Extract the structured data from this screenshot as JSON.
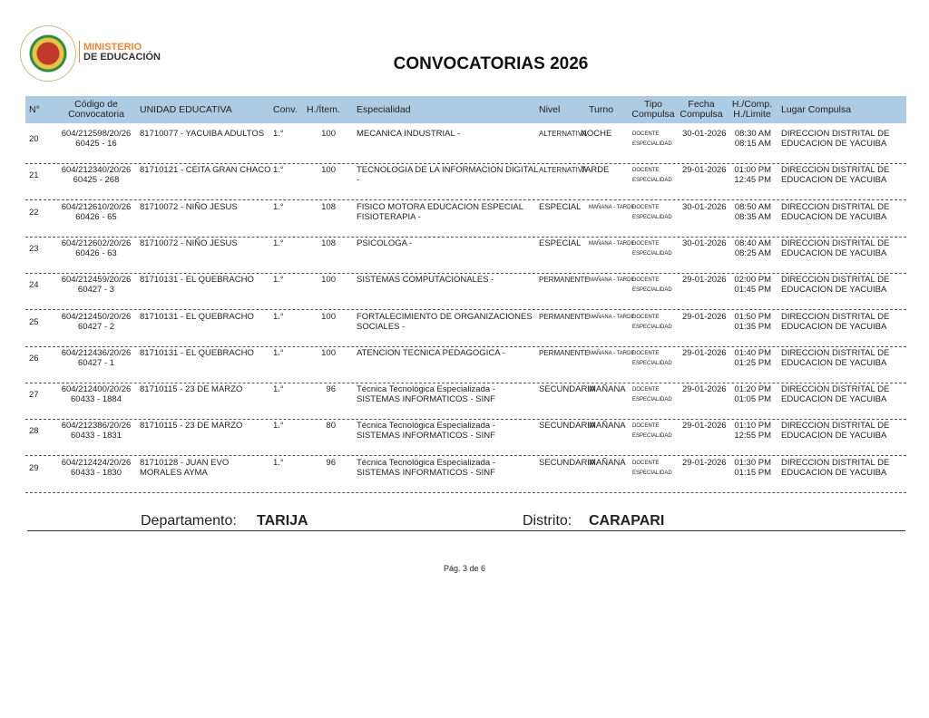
{
  "header": {
    "ministry_line1": "MINISTERIO",
    "ministry_line2": "DE EDUCACIÓN",
    "title": "CONVOCATORIAS 2026"
  },
  "columns": {
    "n": "N°",
    "codigo": "Código de Convocatoria",
    "unidad": "UNIDAD EDUCATIVA",
    "conv": "Conv.",
    "hitem": "H./Ítem.",
    "esp": "Especialidad",
    "nivel": "Nivel",
    "turno": "Turno",
    "tipo": "Tipo Compulsa",
    "fecha": "Fecha Compulsa",
    "hora": "H./Comp. H./Limite",
    "lugar": "Lugar Compulsa"
  },
  "rows": [
    {
      "n": "20",
      "cod1": "604/212598/20/26",
      "cod2": "60425 - 16",
      "unidad": "81710077 - YACUIBA ADULTOS",
      "unidad2": "",
      "conv": "1.°",
      "hitem": "100",
      "esp1": "MECANICA INDUSTRIAL -",
      "esp2": "",
      "nivel": "ALTERNATIVA",
      "turno": "NOCHE",
      "tipo1": "DOCENTE",
      "tipo2": "ESPECIALIDAD",
      "fecha": "30-01-2026",
      "h1": "08:30 AM",
      "h2": "08:15 AM",
      "lugar1": "DIRECCION DISTRITAL DE",
      "lugar2": "EDUCACION DE YACUIBA"
    },
    {
      "n": "21",
      "cod1": "604/212340/20/26",
      "cod2": "60425 - 268",
      "unidad": "81710121 - CEITA GRAN CHACO",
      "unidad2": "",
      "conv": "1.°",
      "hitem": "100",
      "esp1": "TECNOLOGIA DE LA INFORMACION DIGITAL",
      "esp2": "-",
      "nivel": "ALTERNATIVA",
      "turno": "TARDE",
      "tipo1": "DOCENTE",
      "tipo2": "ESPECIALIDAD",
      "fecha": "29-01-2026",
      "h1": "01:00 PM",
      "h2": "12:45 PM",
      "lugar1": "DIRECCION DISTRITAL DE",
      "lugar2": "EDUCACION DE YACUIBA"
    },
    {
      "n": "22",
      "cod1": "604/212610/20/26",
      "cod2": "60426 - 65",
      "unidad": "81710072 - NIÑO JESUS",
      "unidad2": "",
      "conv": "1.°",
      "hitem": "108",
      "esp1": "FISICO MOTORA EDUCACION ESPECIAL",
      "esp2": "FISIOTERAPIA -",
      "nivel": "ESPECIAL",
      "turno": "MAÑANA - TARDE",
      "tipo1": "DOCENTE",
      "tipo2": "ESPECIALIDAD",
      "fecha": "30-01-2026",
      "h1": "08:50 AM",
      "h2": "08:35 AM",
      "lugar1": "DIRECCION DISTRITAL DE",
      "lugar2": "EDUCACION DE YACUIBA"
    },
    {
      "n": "23",
      "cod1": "604/212602/20/26",
      "cod2": "60426 - 63",
      "unidad": "81710072 - NIÑO JESUS",
      "unidad2": "",
      "conv": "1.°",
      "hitem": "108",
      "esp1": "PSICOLOGA -",
      "esp2": "",
      "nivel": "ESPECIAL",
      "turno": "MAÑANA - TARDE",
      "tipo1": "DOCENTE",
      "tipo2": "ESPECIALIDAD",
      "fecha": "30-01-2026",
      "h1": "08:40 AM",
      "h2": "08:25 AM",
      "lugar1": "DIRECCION DISTRITAL DE",
      "lugar2": "EDUCACION DE YACUIBA"
    },
    {
      "n": "24",
      "cod1": "604/212459/20/26",
      "cod2": "60427 - 3",
      "unidad": "81710131 - EL QUEBRACHO",
      "unidad2": "",
      "conv": "1.°",
      "hitem": "100",
      "esp1": "SISTEMAS COMPUTACIONALES -",
      "esp2": "",
      "nivel": "PERMANENTE",
      "turno": "MAÑANA - TARDE",
      "tipo1": "DOCENTE",
      "tipo2": "ESPECIALIDAD",
      "fecha": "29-01-2026",
      "h1": "02:00 PM",
      "h2": "01:45 PM",
      "lugar1": "DIRECCION DISTRITAL DE",
      "lugar2": "EDUCACION DE YACUIBA"
    },
    {
      "n": "25",
      "cod1": "604/212450/20/26",
      "cod2": "60427 - 2",
      "unidad": "81710131 - EL QUEBRACHO",
      "unidad2": "",
      "conv": "1.°",
      "hitem": "100",
      "esp1": "FORTALECIMIENTO DE ORGANIZACIONES",
      "esp2": "SOCIALES -",
      "nivel": "PERMANENTE",
      "turno": "MAÑANA - TARDE",
      "tipo1": "DOCENTE",
      "tipo2": "ESPECIALIDAD",
      "fecha": "29-01-2026",
      "h1": "01:50 PM",
      "h2": "01:35 PM",
      "lugar1": "DIRECCION DISTRITAL DE",
      "lugar2": "EDUCACION DE YACUIBA"
    },
    {
      "n": "26",
      "cod1": "604/212436/20/26",
      "cod2": "60427 - 1",
      "unidad": "81710131 - EL QUEBRACHO",
      "unidad2": "",
      "conv": "1.°",
      "hitem": "100",
      "esp1": "ATENCION TECNICA PEDAGOGICA -",
      "esp2": "",
      "nivel": "PERMANENTE",
      "turno": "MAÑANA - TARDE",
      "tipo1": "DOCENTE",
      "tipo2": "ESPECIALIDAD",
      "fecha": "29-01-2026",
      "h1": "01:40 PM",
      "h2": "01:25 PM",
      "lugar1": "DIRECCION DISTRITAL DE",
      "lugar2": "EDUCACION DE YACUIBA"
    },
    {
      "n": "27",
      "cod1": "604/212400/20/26",
      "cod2": "60433 - 1884",
      "unidad": "81710115 - 23 DE MARZO",
      "unidad2": "",
      "conv": "1.°",
      "hitem": "96",
      "esp1": "Técnica Tecnológica Especializada -",
      "esp2": "SISTEMAS INFORMATICOS  - SINF",
      "nivel": "SECUNDARIA",
      "turno": "MAÑANA",
      "tipo1": "DOCENTE",
      "tipo2": "ESPECIALIDAD",
      "fecha": "29-01-2026",
      "h1": "01:20 PM",
      "h2": "01:05 PM",
      "lugar1": "DIRECCION DISTRITAL DE",
      "lugar2": "EDUCACION DE YACUIBA"
    },
    {
      "n": "28",
      "cod1": "604/212386/20/26",
      "cod2": "60433 - 1831",
      "unidad": "81710115 - 23 DE MARZO",
      "unidad2": "",
      "conv": "1.°",
      "hitem": "80",
      "esp1": "Técnica Tecnológica Especializada -",
      "esp2": "SISTEMAS INFORMATICOS  - SINF",
      "nivel": "SECUNDARIA",
      "turno": "MAÑANA",
      "tipo1": "DOCENTE",
      "tipo2": "ESPECIALIDAD",
      "fecha": "29-01-2026",
      "h1": "01:10 PM",
      "h2": "12:55 PM",
      "lugar1": "DIRECCION DISTRITAL DE",
      "lugar2": "EDUCACION DE YACUIBA"
    },
    {
      "n": "29",
      "cod1": "604/212424/20/26",
      "cod2": "60433 - 1830",
      "unidad": "81710128 - JUAN EVO",
      "unidad2": "MORALES AYMA",
      "conv": "1.°",
      "hitem": "96",
      "esp1": "Técnica Tecnológica Especializada -",
      "esp2": "SISTEMAS INFORMATICOS  - SINF",
      "nivel": "SECUNDARIA",
      "turno": "MAÑANA",
      "tipo1": "DOCENTE",
      "tipo2": "ESPECIALIDAD",
      "fecha": "29-01-2026",
      "h1": "01:30 PM",
      "h2": "01:15 PM",
      "lugar1": "DIRECCION DISTRITAL DE",
      "lugar2": "EDUCACION DE YACUIBA"
    }
  ],
  "footer": {
    "dept_label": "Departamento:",
    "dept": "TARIJA",
    "dist_label": "Distrito:",
    "dist": "CARAPARI",
    "page": "Pág. 3 de 6"
  }
}
